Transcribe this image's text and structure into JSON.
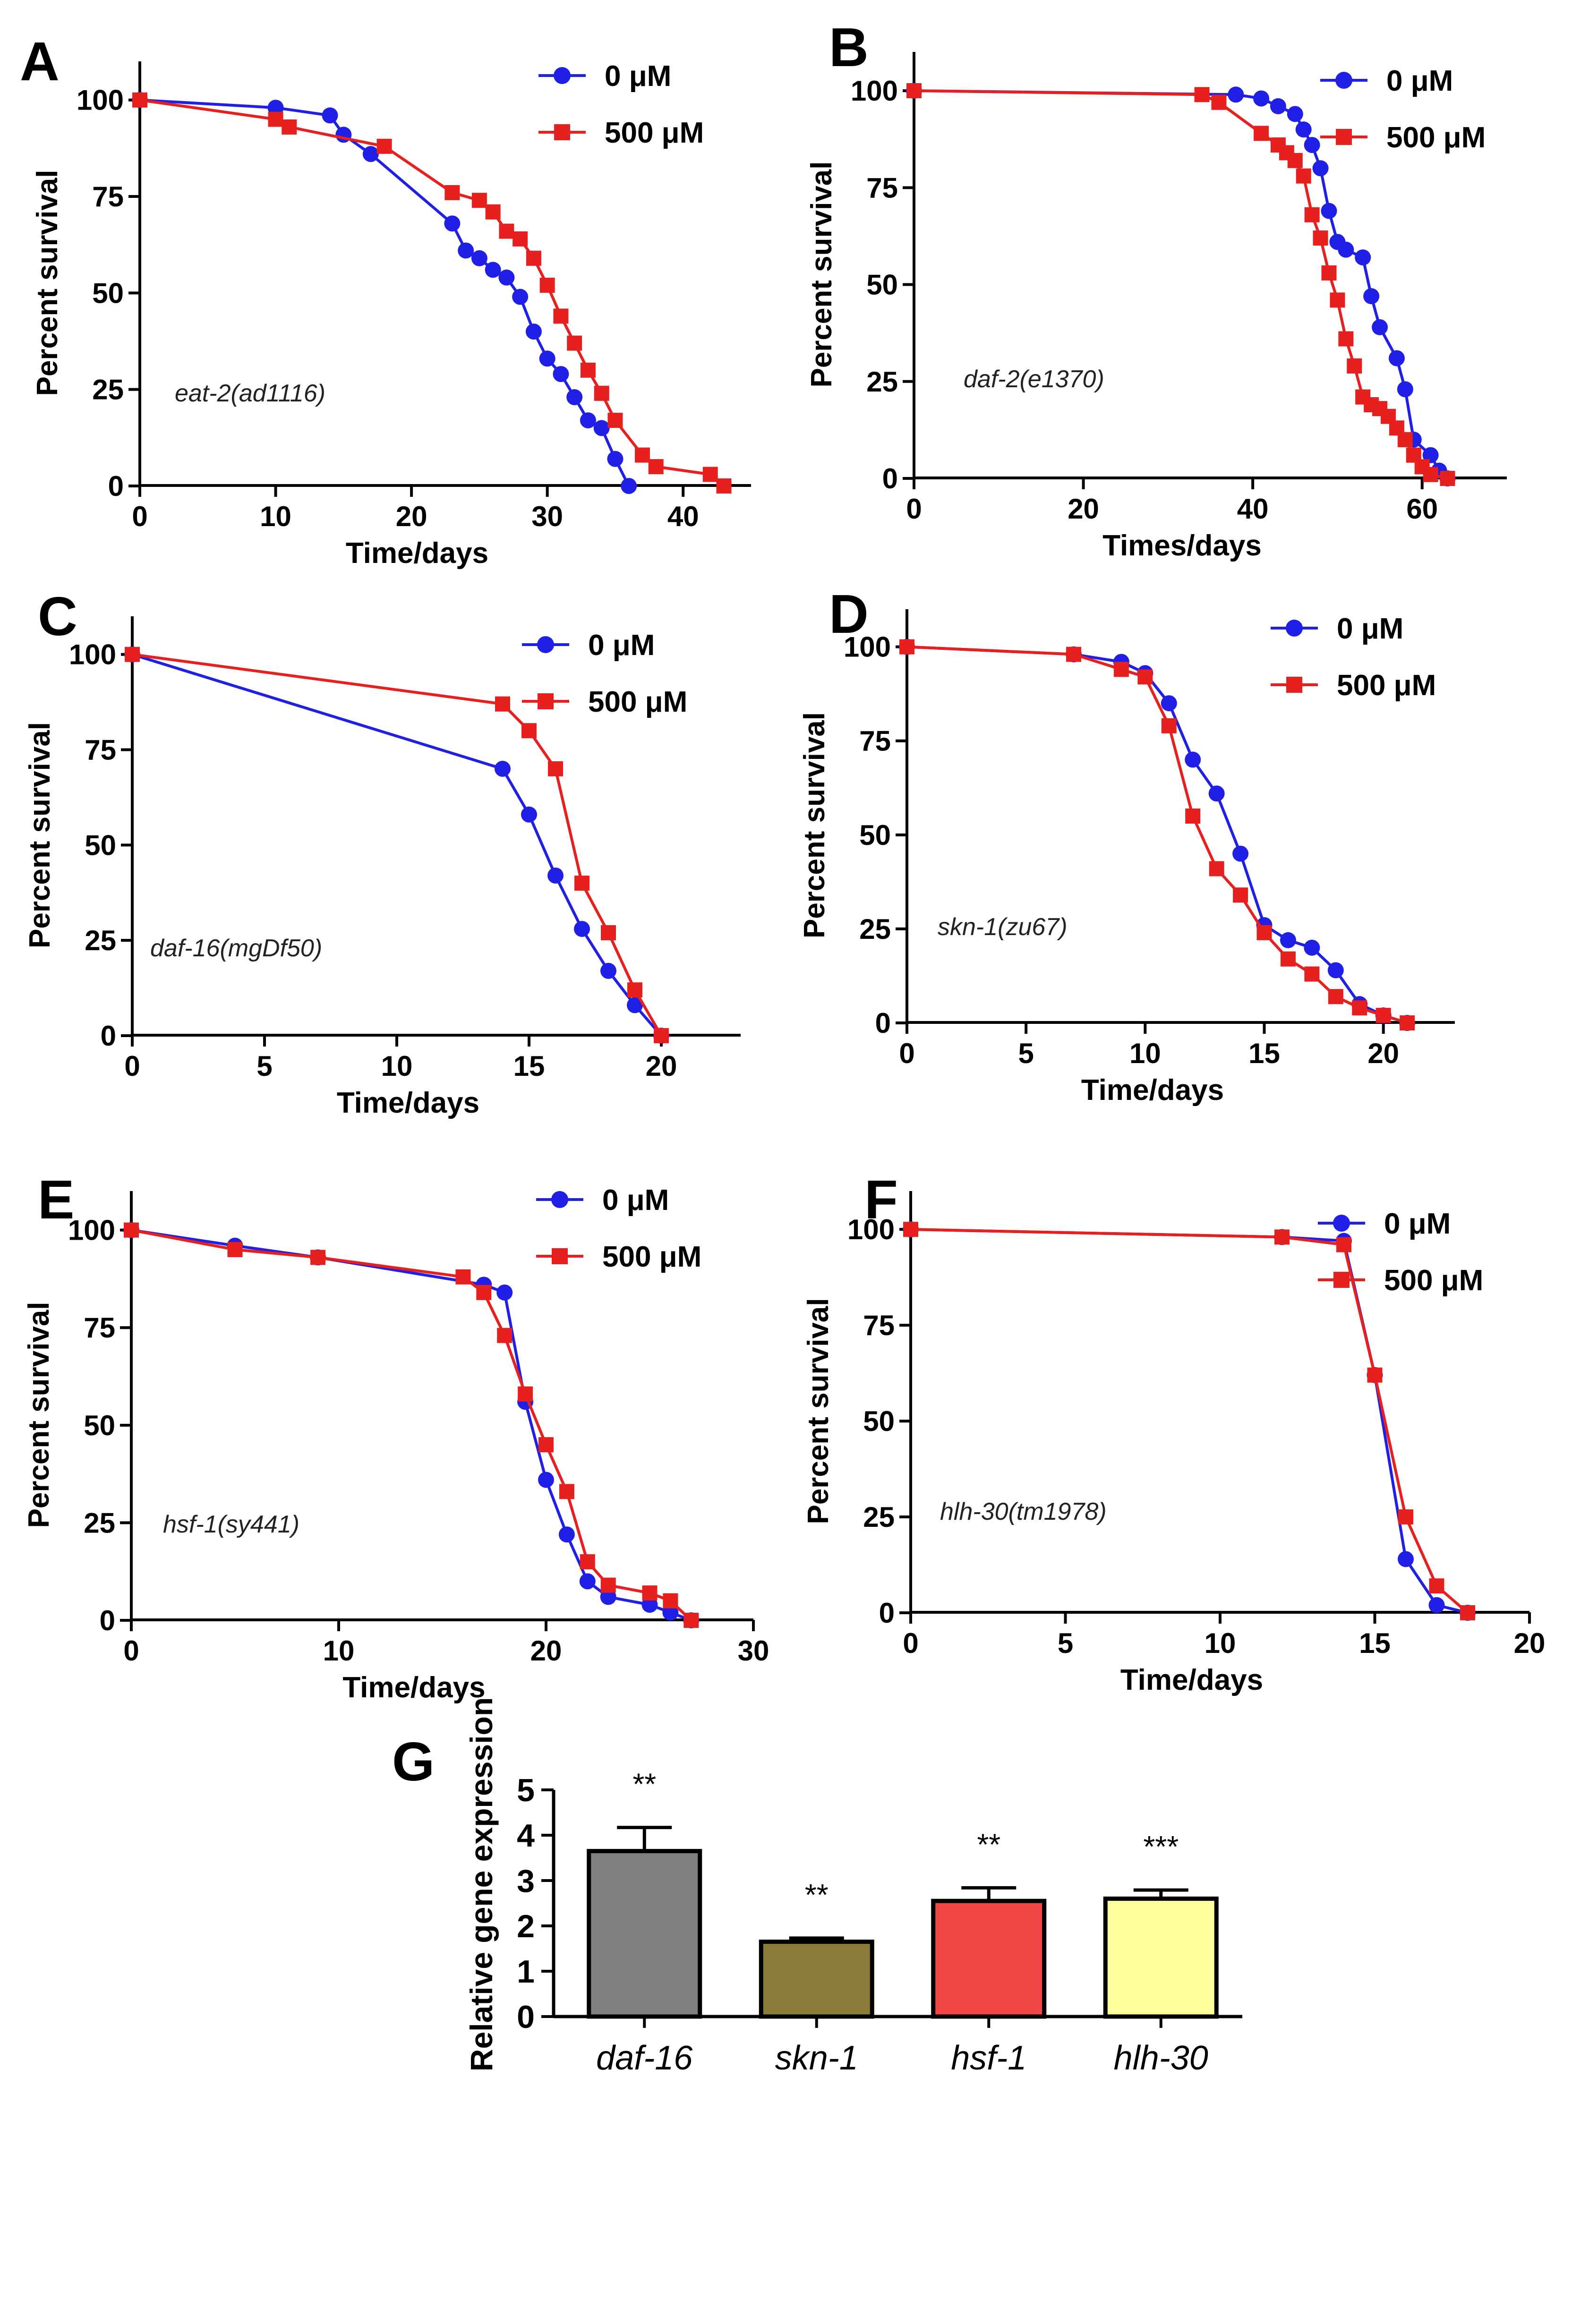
{
  "chart_data": [
    {
      "panel": "A",
      "type": "line",
      "strain": "eat-2(ad1116)",
      "xlabel": "Time/days",
      "ylabel": "Percent survival",
      "xlim": [
        0,
        45
      ],
      "ylim": [
        0,
        110
      ],
      "xticks": [
        0,
        10,
        20,
        30,
        40
      ],
      "yticks": [
        0,
        25,
        50,
        75,
        100
      ],
      "legend": "top-right",
      "series": [
        {
          "name": "0 μM",
          "color": "#1f1fe6",
          "marker": "circle",
          "x": [
            0,
            10,
            14,
            15,
            17,
            23,
            24,
            25,
            26,
            27,
            28,
            29,
            30,
            31,
            32,
            33,
            34,
            35,
            36
          ],
          "y": [
            100,
            98,
            96,
            91,
            86,
            68,
            61,
            59,
            56,
            54,
            49,
            40,
            33,
            29,
            23,
            17,
            15,
            7,
            0
          ]
        },
        {
          "name": "500 μM",
          "color": "#e61f1f",
          "marker": "square",
          "x": [
            0,
            10,
            11,
            18,
            23,
            25,
            26,
            27,
            28,
            29,
            30,
            31,
            32,
            33,
            34,
            35,
            37,
            38,
            42,
            43
          ],
          "y": [
            100,
            95,
            93,
            88,
            76,
            74,
            71,
            66,
            64,
            59,
            52,
            44,
            37,
            30,
            24,
            17,
            8,
            5,
            3,
            0
          ]
        }
      ]
    },
    {
      "panel": "B",
      "type": "line",
      "strain": "daf-2(e1370)",
      "xlabel": "Times/days",
      "ylabel": "Percent survival",
      "xlim": [
        0,
        70
      ],
      "ylim": [
        0,
        110
      ],
      "xticks": [
        0,
        20,
        40,
        60
      ],
      "yticks": [
        0,
        25,
        50,
        75,
        100
      ],
      "legend": "top-right",
      "series": [
        {
          "name": "0 μM",
          "color": "#1f1fe6",
          "marker": "circle",
          "x": [
            0,
            38,
            41,
            43,
            45,
            46,
            47,
            48,
            49,
            50,
            51,
            53,
            54,
            55,
            57,
            58,
            59,
            61,
            62,
            63
          ],
          "y": [
            100,
            99,
            98,
            96,
            94,
            90,
            86,
            80,
            69,
            61,
            59,
            57,
            47,
            39,
            31,
            23,
            10,
            6,
            2,
            0
          ]
        },
        {
          "name": "500 μM",
          "color": "#e61f1f",
          "marker": "square",
          "x": [
            0,
            34,
            36,
            41,
            43,
            44,
            45,
            46,
            47,
            48,
            49,
            50,
            51,
            52,
            53,
            54,
            55,
            56,
            57,
            58,
            59,
            60,
            61,
            63
          ],
          "y": [
            100,
            99,
            97,
            89,
            86,
            84,
            82,
            78,
            68,
            62,
            53,
            46,
            36,
            29,
            21,
            19,
            18,
            16,
            13,
            10,
            6,
            3,
            1,
            0
          ]
        }
      ]
    },
    {
      "panel": "C",
      "type": "line",
      "strain": "daf-16(mgDf50)",
      "xlabel": "Time/days",
      "ylabel": "Percent survival",
      "xlim": [
        0,
        23
      ],
      "ylim": [
        0,
        110
      ],
      "xticks": [
        0,
        5,
        10,
        15,
        20
      ],
      "yticks": [
        0,
        25,
        50,
        75,
        100
      ],
      "legend": "top-right",
      "series": [
        {
          "name": "0 μM",
          "color": "#1f1fe6",
          "marker": "circle",
          "x": [
            0,
            14,
            15,
            16,
            17,
            18,
            19,
            20
          ],
          "y": [
            100,
            70,
            58,
            42,
            28,
            17,
            8,
            0
          ]
        },
        {
          "name": "500 μM",
          "color": "#e61f1f",
          "marker": "square",
          "x": [
            0,
            14,
            15,
            16,
            17,
            18,
            19,
            20
          ],
          "y": [
            100,
            87,
            80,
            70,
            40,
            27,
            12,
            0
          ]
        }
      ]
    },
    {
      "panel": "D",
      "type": "line",
      "strain": "skn-1(zu67)",
      "xlabel": "Time/days",
      "ylabel": "Percent survival",
      "xlim": [
        0,
        23
      ],
      "ylim": [
        0,
        110
      ],
      "xticks": [
        0,
        5,
        10,
        15,
        20
      ],
      "yticks": [
        0,
        25,
        50,
        75,
        100
      ],
      "legend": "top-right",
      "series": [
        {
          "name": "0 μM",
          "color": "#1f1fe6",
          "marker": "circle",
          "x": [
            0,
            7,
            9,
            10,
            11,
            12,
            13,
            14,
            15,
            16,
            17,
            18,
            19,
            20,
            21
          ],
          "y": [
            100,
            98,
            96,
            93,
            85,
            70,
            61,
            45,
            26,
            22,
            20,
            14,
            5,
            2,
            0
          ]
        },
        {
          "name": "500 μM",
          "color": "#e61f1f",
          "marker": "square",
          "x": [
            0,
            7,
            9,
            10,
            11,
            12,
            13,
            14,
            15,
            16,
            17,
            18,
            19,
            20,
            21
          ],
          "y": [
            100,
            98,
            94,
            92,
            79,
            55,
            41,
            34,
            24,
            17,
            13,
            7,
            4,
            2,
            0
          ]
        }
      ]
    },
    {
      "panel": "E",
      "type": "line",
      "strain": "hsf-1(sy441)",
      "xlabel": "Time/days",
      "ylabel": "Percent survival",
      "xlim": [
        0,
        30
      ],
      "ylim": [
        0,
        110
      ],
      "xticks": [
        0,
        10,
        20,
        30
      ],
      "yticks": [
        0,
        25,
        50,
        75,
        100
      ],
      "legend": "top-right",
      "series": [
        {
          "name": "0 μM",
          "color": "#1f1fe6",
          "marker": "circle",
          "x": [
            0,
            5,
            9,
            17,
            18,
            19,
            20,
            21,
            22,
            23,
            25,
            26,
            27
          ],
          "y": [
            100,
            96,
            93,
            86,
            84,
            56,
            36,
            22,
            10,
            6,
            4,
            2,
            0
          ]
        },
        {
          "name": "500 μM",
          "color": "#e61f1f",
          "marker": "square",
          "x": [
            0,
            5,
            9,
            16,
            17,
            18,
            19,
            20,
            21,
            22,
            23,
            25,
            26,
            27
          ],
          "y": [
            100,
            95,
            93,
            88,
            84,
            73,
            58,
            45,
            33,
            15,
            9,
            7,
            5,
            0
          ]
        }
      ]
    },
    {
      "panel": "F",
      "type": "line",
      "strain": "hlh-30(tm1978)",
      "xlabel": "Time/days",
      "ylabel": "Percent survival",
      "xlim": [
        0,
        20
      ],
      "ylim": [
        0,
        110
      ],
      "xticks": [
        0,
        5,
        10,
        15,
        20
      ],
      "yticks": [
        0,
        25,
        50,
        75,
        100
      ],
      "legend": "top-right",
      "series": [
        {
          "name": "0 μM",
          "color": "#1f1fe6",
          "marker": "circle",
          "x": [
            0,
            12,
            14,
            15,
            16,
            17,
            18
          ],
          "y": [
            100,
            98,
            97,
            62,
            14,
            2,
            0
          ]
        },
        {
          "name": "500 μM",
          "color": "#e61f1f",
          "marker": "square",
          "x": [
            0,
            12,
            14,
            15,
            16,
            17,
            18
          ],
          "y": [
            100,
            98,
            96,
            62,
            25,
            7,
            0
          ]
        }
      ]
    },
    {
      "panel": "G",
      "type": "bar",
      "xlabel": "",
      "ylabel": "Relative gene expression",
      "ylim": [
        0,
        5
      ],
      "yticks": [
        0,
        1,
        2,
        3,
        4,
        5
      ],
      "categories": [
        "daf-16",
        "skn-1",
        "hsf-1",
        "hlh-30"
      ],
      "values": [
        3.65,
        1.65,
        2.55,
        2.6
      ],
      "errors": [
        0.52,
        0.08,
        0.29,
        0.19
      ],
      "colors": [
        "#808080",
        "#8c7d3a",
        "#f04747",
        "#ffff9e"
      ],
      "significance": [
        "**",
        "**",
        "**",
        "***"
      ]
    }
  ]
}
